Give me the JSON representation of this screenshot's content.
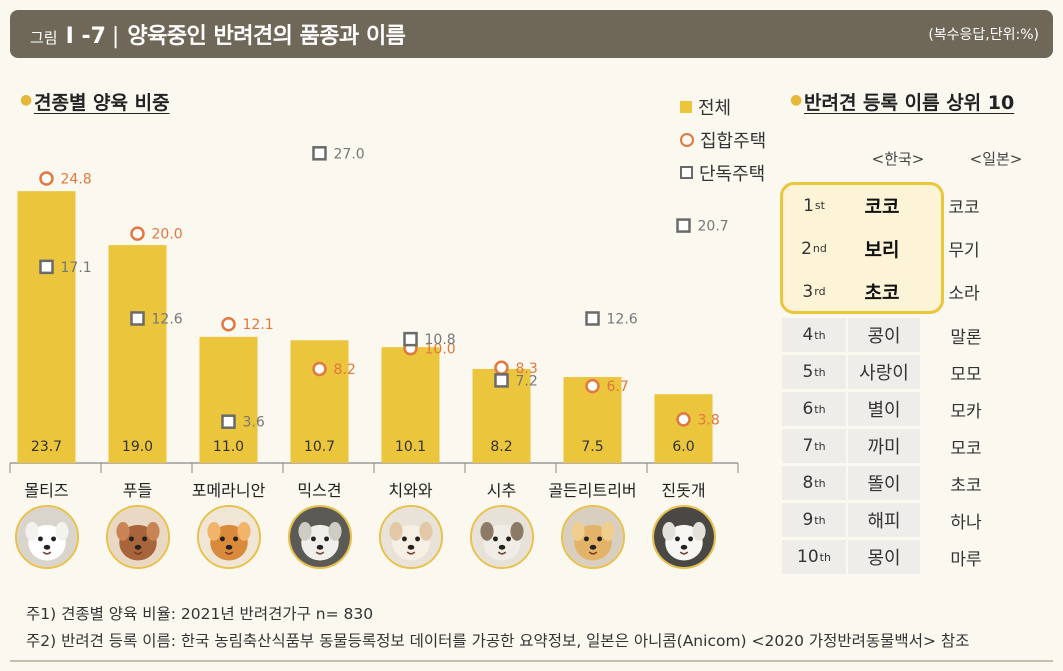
{
  "header": {
    "figure_label": "그림",
    "figure_number": "I -7",
    "separator": "|",
    "title": "양육중인 반려견의 품종과 이름",
    "unit": "(복수응답,단위:%)"
  },
  "left_section_title": "견종별 양육 비중",
  "right_section_title": "반려견 등록 이름 상위 10",
  "legend": {
    "total": "전체",
    "apartment": "집합주택",
    "detached": "단독주택"
  },
  "colors": {
    "bar": "#ebc53c",
    "apartment": "#e07840",
    "detached": "#6a6a6a",
    "header_bg": "#6f6858"
  },
  "chart_data": {
    "type": "bar",
    "categories": [
      "몰티즈",
      "푸들",
      "포메라니안",
      "믹스견",
      "치와와",
      "시추",
      "골든리트리버",
      "진돗개"
    ],
    "series": [
      {
        "name": "전체",
        "values": [
          23.7,
          19.0,
          11.0,
          10.7,
          10.1,
          8.2,
          7.5,
          6.0
        ],
        "labels": [
          "23.7",
          "19.0",
          "11.0",
          "10.7",
          "10.1",
          "8.2",
          "7.5",
          "6.0"
        ]
      },
      {
        "name": "집합주택",
        "values": [
          24.8,
          20.0,
          12.1,
          8.2,
          10.0,
          8.3,
          6.7,
          3.8
        ],
        "labels": [
          "24.8",
          "20.0",
          "12.1",
          "8.2",
          "10.0",
          "8.3",
          "6.7",
          "3.8"
        ]
      },
      {
        "name": "단독주택",
        "values": [
          17.1,
          12.6,
          3.6,
          27.0,
          10.8,
          7.2,
          12.6,
          20.7
        ],
        "labels": [
          "17.1",
          "12.6",
          "3.6",
          "27.0",
          "10.8",
          "7.2",
          "12.6",
          "20.7"
        ]
      }
    ],
    "ylim": [
      0,
      30
    ],
    "legend_position": "top-right"
  },
  "dog_icons": [
    "maltese-photo-icon",
    "poodle-photo-icon",
    "pomeranian-photo-icon",
    "mixed-dog-photo-icon",
    "chihuahua-photo-icon",
    "shih-tzu-photo-icon",
    "golden-retriever-photo-icon",
    "jindo-photo-icon"
  ],
  "names_table": {
    "header_korea": "<한국>",
    "header_japan": "<일본>",
    "rows": [
      {
        "rank_num": "1",
        "rank_suffix": "st",
        "korea": "코코",
        "japan": "코코"
      },
      {
        "rank_num": "2",
        "rank_suffix": "nd",
        "korea": "보리",
        "japan": "무기"
      },
      {
        "rank_num": "3",
        "rank_suffix": "rd",
        "korea": "초코",
        "japan": "소라"
      },
      {
        "rank_num": "4",
        "rank_suffix": "th",
        "korea": "콩이",
        "japan": "말론"
      },
      {
        "rank_num": "5",
        "rank_suffix": "th",
        "korea": "사랑이",
        "japan": "모모"
      },
      {
        "rank_num": "6",
        "rank_suffix": "th",
        "korea": "별이",
        "japan": "모카"
      },
      {
        "rank_num": "7",
        "rank_suffix": "th",
        "korea": "까미",
        "japan": "모코"
      },
      {
        "rank_num": "8",
        "rank_suffix": "th",
        "korea": "똘이",
        "japan": "초코"
      },
      {
        "rank_num": "9",
        "rank_suffix": "th",
        "korea": "해피",
        "japan": "하나"
      },
      {
        "rank_num": "10",
        "rank_suffix": "th",
        "korea": "몽이",
        "japan": "마루"
      }
    ]
  },
  "notes": {
    "note1": "주1) 견종별 양육 비율: 2021년 반려견가구 n= 830",
    "note2": "주2) 반려견 등록 이름: 한국 농림축산식품부 동물등록정보 데이터를 가공한 요약정보, 일본은 아니콤(Anicom) <2020 가정반려동물백서> 참조"
  }
}
